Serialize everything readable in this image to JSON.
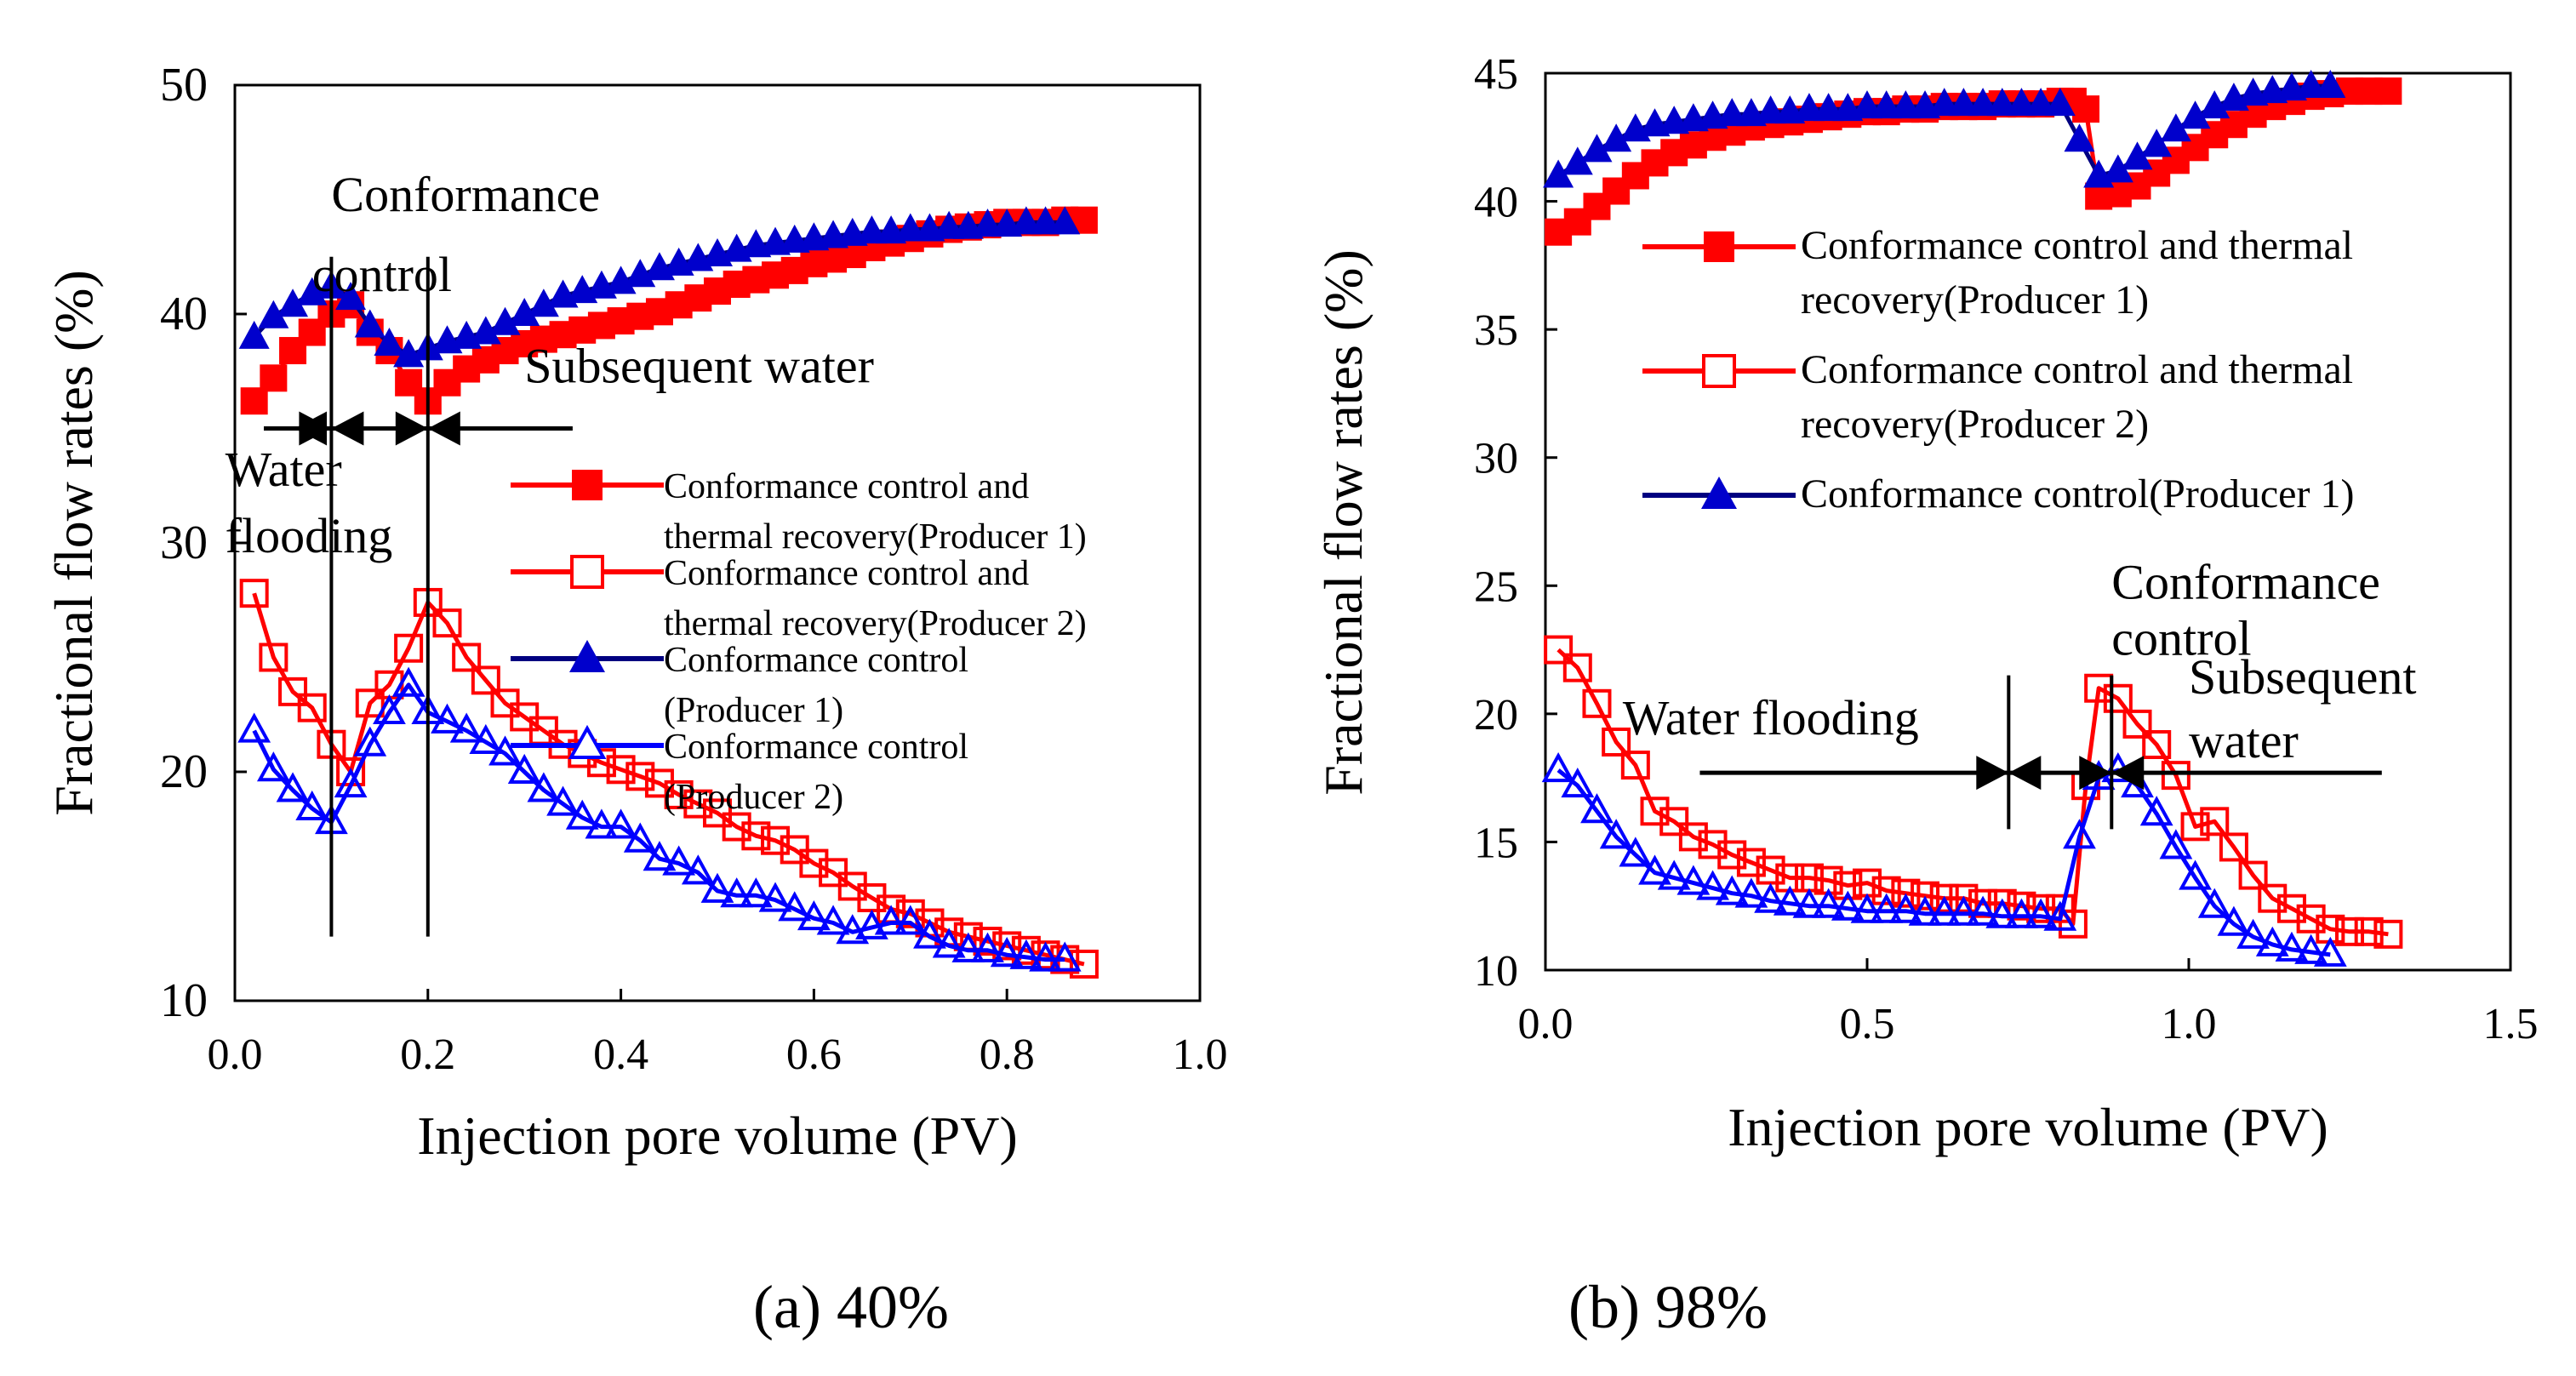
{
  "chart_data": [
    {
      "type": "line",
      "panel_caption": "(a) 40%",
      "xlabel": "Injection pore volume (PV)",
      "ylabel": "Fractional flow rates (%)",
      "xlim": [
        0.0,
        1.0
      ],
      "ylim": [
        10,
        50
      ],
      "xticks": [
        "0.0",
        "0.2",
        "0.4",
        "0.6",
        "0.8",
        "1.0"
      ],
      "yticks": [
        "10",
        "20",
        "30",
        "40",
        "50"
      ],
      "grid": false,
      "legend_position": "center-right",
      "stage_lines_x": [
        0.1,
        0.2
      ],
      "annotations": [
        {
          "id": "a_ann1",
          "text": "Conformance",
          "x": 0.1,
          "y": 44.5
        },
        {
          "id": "a_ann2",
          "text": "control",
          "x": 0.08,
          "y": 41.0
        },
        {
          "id": "a_ann3",
          "text": "Subsequent water",
          "x": 0.3,
          "y": 37.0
        },
        {
          "id": "a_ann4",
          "text": "Water",
          "x": -0.01,
          "y": 32.5
        },
        {
          "id": "a_ann5",
          "text": "flooding",
          "x": -0.01,
          "y": 29.6
        }
      ],
      "legend_text": [
        "Conformance control and",
        "thermal recovery(Producer 1)",
        "Conformance control and",
        "thermal recovery(Producer 2)",
        "Conformance control",
        "(Producer 1)",
        "Conformance control",
        "(Producer 2)"
      ],
      "series": [
        {
          "name": "Conformance control and thermal recovery(Producer 1)",
          "color": "#ff0000",
          "marker": "square-filled",
          "x": [
            0.02,
            0.04,
            0.06,
            0.08,
            0.1,
            0.12,
            0.14,
            0.16,
            0.18,
            0.2,
            0.22,
            0.24,
            0.26,
            0.28,
            0.3,
            0.32,
            0.34,
            0.36,
            0.38,
            0.4,
            0.42,
            0.44,
            0.46,
            0.48,
            0.5,
            0.52,
            0.54,
            0.56,
            0.58,
            0.6,
            0.62,
            0.64,
            0.66,
            0.68,
            0.7,
            0.72,
            0.74,
            0.76,
            0.78,
            0.8,
            0.82,
            0.84,
            0.86,
            0.88
          ],
          "y": [
            36.2,
            37.2,
            38.4,
            39.2,
            40.0,
            40.4,
            39.2,
            38.4,
            37.0,
            36.2,
            37.0,
            37.6,
            38.0,
            38.4,
            38.7,
            38.9,
            39.1,
            39.3,
            39.5,
            39.7,
            39.9,
            40.1,
            40.4,
            40.7,
            41.0,
            41.3,
            41.5,
            41.7,
            41.9,
            42.2,
            42.4,
            42.6,
            42.9,
            43.1,
            43.3,
            43.5,
            43.7,
            43.8,
            43.9,
            44.0,
            44.0,
            44.0,
            44.1,
            44.1
          ]
        },
        {
          "name": "Conformance control and thermal recovery(Producer 2)",
          "color": "#ff0000",
          "marker": "square-open",
          "x": [
            0.02,
            0.04,
            0.06,
            0.08,
            0.1,
            0.12,
            0.14,
            0.16,
            0.18,
            0.2,
            0.22,
            0.24,
            0.26,
            0.28,
            0.3,
            0.32,
            0.34,
            0.36,
            0.38,
            0.4,
            0.42,
            0.44,
            0.46,
            0.48,
            0.5,
            0.52,
            0.54,
            0.56,
            0.58,
            0.6,
            0.62,
            0.64,
            0.66,
            0.68,
            0.7,
            0.72,
            0.74,
            0.76,
            0.78,
            0.8,
            0.82,
            0.84,
            0.86,
            0.88
          ],
          "y": [
            27.8,
            25.0,
            23.5,
            22.8,
            21.2,
            20.0,
            23.0,
            23.8,
            25.4,
            27.4,
            26.5,
            25.0,
            24.0,
            23.0,
            22.4,
            21.8,
            21.2,
            20.8,
            20.4,
            20.1,
            19.8,
            19.5,
            19.0,
            18.6,
            18.2,
            17.6,
            17.2,
            17.0,
            16.6,
            16.0,
            15.6,
            15.0,
            14.5,
            14.0,
            13.8,
            13.4,
            13.0,
            12.8,
            12.6,
            12.4,
            12.2,
            12.0,
            11.8,
            11.6
          ]
        },
        {
          "name": "Conformance control(Producer 1)",
          "color": "#0000cc",
          "marker": "triangle-filled",
          "x": [
            0.02,
            0.04,
            0.06,
            0.08,
            0.1,
            0.12,
            0.14,
            0.16,
            0.18,
            0.2,
            0.22,
            0.24,
            0.26,
            0.28,
            0.3,
            0.32,
            0.34,
            0.36,
            0.38,
            0.4,
            0.42,
            0.44,
            0.46,
            0.48,
            0.5,
            0.52,
            0.54,
            0.56,
            0.58,
            0.6,
            0.62,
            0.64,
            0.66,
            0.68,
            0.7,
            0.72,
            0.74,
            0.76,
            0.78,
            0.8,
            0.82,
            0.84,
            0.86
          ],
          "y": [
            39.0,
            39.9,
            40.4,
            40.9,
            41.2,
            40.7,
            39.5,
            38.7,
            38.2,
            38.5,
            38.8,
            39.0,
            39.2,
            39.6,
            40.0,
            40.4,
            40.8,
            41.0,
            41.2,
            41.4,
            41.7,
            42.0,
            42.2,
            42.4,
            42.6,
            42.8,
            43.0,
            43.1,
            43.2,
            43.3,
            43.4,
            43.5,
            43.6,
            43.6,
            43.7,
            43.7,
            43.8,
            43.8,
            43.9,
            43.9,
            44.0,
            44.0,
            44.0
          ]
        },
        {
          "name": "Conformance control(Producer 2)",
          "color": "#0000ff",
          "marker": "triangle-open",
          "x": [
            0.02,
            0.04,
            0.06,
            0.08,
            0.1,
            0.12,
            0.14,
            0.16,
            0.18,
            0.2,
            0.22,
            0.24,
            0.26,
            0.28,
            0.3,
            0.32,
            0.34,
            0.36,
            0.38,
            0.4,
            0.42,
            0.44,
            0.46,
            0.48,
            0.5,
            0.52,
            0.54,
            0.56,
            0.58,
            0.6,
            0.62,
            0.64,
            0.66,
            0.68,
            0.7,
            0.72,
            0.74,
            0.76,
            0.78,
            0.8,
            0.82,
            0.84,
            0.86
          ],
          "y": [
            21.8,
            20.1,
            19.2,
            18.4,
            17.8,
            19.4,
            21.2,
            22.6,
            23.8,
            22.6,
            22.2,
            21.8,
            21.3,
            20.8,
            20.0,
            19.2,
            18.6,
            18.0,
            17.6,
            17.6,
            17.0,
            16.2,
            16.0,
            15.6,
            14.8,
            14.6,
            14.6,
            14.4,
            14.0,
            13.6,
            13.4,
            13.0,
            13.2,
            13.4,
            13.4,
            12.8,
            12.4,
            12.2,
            12.2,
            12.0,
            11.9,
            11.8,
            11.8
          ]
        }
      ]
    },
    {
      "type": "line",
      "panel_caption": "(b) 98%",
      "xlabel": "Injection pore volume (PV)",
      "ylabel": "Fractional flow rates (%)",
      "xlim": [
        0.0,
        1.5
      ],
      "ylim": [
        10,
        45
      ],
      "xticks": [
        "0.0",
        "0.5",
        "1.0",
        "1.5"
      ],
      "yticks": [
        "10",
        "15",
        "20",
        "25",
        "30",
        "35",
        "40",
        "45"
      ],
      "grid": false,
      "legend_position": "top",
      "stage_lines_x": [
        0.72,
        0.88
      ],
      "annotations": [
        {
          "id": "b_ann1",
          "text": "Conformance",
          "x": 0.88,
          "y": 24.5
        },
        {
          "id": "b_ann2",
          "text": "control",
          "x": 0.88,
          "y": 22.3
        },
        {
          "id": "b_ann3",
          "text": "Water flooding",
          "x": 0.12,
          "y": 19.2
        },
        {
          "id": "b_ann4",
          "text": "Subsequent",
          "x": 1.0,
          "y": 20.8
        },
        {
          "id": "b_ann5",
          "text": "water",
          "x": 1.0,
          "y": 18.3
        }
      ],
      "legend_text": [
        "Conformance control and thermal",
        "recovery(Producer 1)",
        "Conformance control and thermal",
        "recovery(Producer 2)",
        "Conformance control(Producer 1)"
      ],
      "series": [
        {
          "name": "Conformance control and thermal recovery(Producer 1)",
          "color": "#ff0000",
          "marker": "square-filled",
          "x": [
            0.02,
            0.05,
            0.08,
            0.11,
            0.14,
            0.17,
            0.2,
            0.23,
            0.26,
            0.29,
            0.32,
            0.35,
            0.38,
            0.41,
            0.44,
            0.47,
            0.5,
            0.53,
            0.56,
            0.59,
            0.62,
            0.65,
            0.68,
            0.71,
            0.74,
            0.77,
            0.8,
            0.82,
            0.84,
            0.86,
            0.89,
            0.92,
            0.95,
            0.98,
            1.01,
            1.04,
            1.07,
            1.1,
            1.13,
            1.16,
            1.19,
            1.22,
            1.25,
            1.28,
            1.31
          ],
          "y": [
            38.8,
            39.2,
            39.8,
            40.4,
            41.0,
            41.5,
            41.9,
            42.2,
            42.5,
            42.7,
            42.9,
            43.0,
            43.1,
            43.2,
            43.3,
            43.4,
            43.5,
            43.5,
            43.6,
            43.6,
            43.7,
            43.7,
            43.7,
            43.8,
            43.8,
            43.8,
            43.9,
            43.9,
            43.6,
            40.2,
            40.3,
            40.6,
            41.1,
            41.6,
            42.1,
            42.6,
            43.0,
            43.4,
            43.7,
            43.9,
            44.1,
            44.2,
            44.3,
            44.3,
            44.3
          ]
        },
        {
          "name": "Conformance control and thermal recovery(Producer 2)",
          "color": "#ff0000",
          "marker": "square-open",
          "x": [
            0.02,
            0.05,
            0.08,
            0.11,
            0.14,
            0.17,
            0.2,
            0.23,
            0.26,
            0.29,
            0.32,
            0.35,
            0.38,
            0.41,
            0.44,
            0.47,
            0.5,
            0.53,
            0.56,
            0.59,
            0.62,
            0.65,
            0.68,
            0.71,
            0.74,
            0.77,
            0.8,
            0.82,
            0.84,
            0.86,
            0.89,
            0.92,
            0.95,
            0.98,
            1.01,
            1.04,
            1.07,
            1.1,
            1.13,
            1.16,
            1.19,
            1.22,
            1.25,
            1.28,
            1.31
          ],
          "y": [
            22.5,
            21.8,
            20.4,
            18.9,
            18.0,
            16.2,
            15.8,
            15.2,
            14.9,
            14.5,
            14.2,
            13.9,
            13.6,
            13.6,
            13.5,
            13.3,
            13.4,
            13.1,
            13.0,
            12.9,
            12.8,
            12.8,
            12.6,
            12.6,
            12.5,
            12.4,
            12.4,
            11.8,
            17.2,
            21.0,
            20.6,
            19.6,
            18.8,
            17.6,
            15.6,
            15.8,
            14.8,
            13.7,
            12.8,
            12.4,
            12.0,
            11.6,
            11.5,
            11.5,
            11.4
          ]
        },
        {
          "name": "Conformance control(Producer 1)",
          "color": "#0000cc",
          "marker": "triangle-filled",
          "x": [
            0.02,
            0.05,
            0.08,
            0.11,
            0.14,
            0.17,
            0.2,
            0.23,
            0.26,
            0.29,
            0.32,
            0.35,
            0.38,
            0.41,
            0.44,
            0.47,
            0.5,
            0.53,
            0.56,
            0.59,
            0.62,
            0.65,
            0.68,
            0.71,
            0.74,
            0.77,
            0.8,
            0.83,
            0.86,
            0.89,
            0.92,
            0.95,
            0.98,
            1.01,
            1.04,
            1.07,
            1.1,
            1.13,
            1.16,
            1.19,
            1.22
          ],
          "y": [
            41.0,
            41.5,
            42.0,
            42.4,
            42.8,
            43.0,
            43.1,
            43.2,
            43.3,
            43.4,
            43.4,
            43.5,
            43.5,
            43.6,
            43.6,
            43.6,
            43.7,
            43.7,
            43.7,
            43.7,
            43.8,
            43.8,
            43.8,
            43.8,
            43.8,
            43.8,
            43.8,
            42.4,
            41.0,
            41.2,
            41.7,
            42.2,
            42.8,
            43.3,
            43.7,
            44.0,
            44.2,
            44.3,
            44.4,
            44.5,
            44.5
          ]
        },
        {
          "name": "Conformance control(Producer 2)",
          "color": "#0000ff",
          "marker": "triangle-open",
          "x": [
            0.02,
            0.05,
            0.08,
            0.11,
            0.14,
            0.17,
            0.2,
            0.23,
            0.26,
            0.29,
            0.32,
            0.35,
            0.38,
            0.41,
            0.44,
            0.47,
            0.5,
            0.53,
            0.56,
            0.59,
            0.62,
            0.65,
            0.68,
            0.71,
            0.74,
            0.77,
            0.8,
            0.83,
            0.86,
            0.89,
            0.92,
            0.95,
            0.98,
            1.01,
            1.04,
            1.07,
            1.1,
            1.13,
            1.16,
            1.19,
            1.22
          ],
          "y": [
            17.8,
            17.2,
            16.2,
            15.2,
            14.5,
            13.8,
            13.6,
            13.4,
            13.2,
            13.0,
            12.9,
            12.7,
            12.6,
            12.5,
            12.5,
            12.4,
            12.3,
            12.3,
            12.3,
            12.2,
            12.2,
            12.2,
            12.2,
            12.1,
            12.1,
            12.1,
            12.0,
            15.2,
            17.5,
            17.8,
            17.2,
            16.1,
            14.8,
            13.6,
            12.5,
            11.8,
            11.3,
            11.0,
            10.8,
            10.7,
            10.6
          ]
        }
      ]
    }
  ]
}
